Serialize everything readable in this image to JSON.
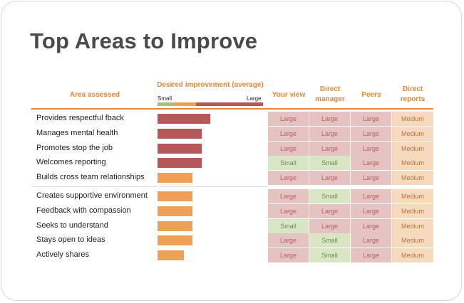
{
  "title": "Top Areas to Improve",
  "headers": {
    "area": "Area assessed",
    "desired": "Desired improvement (average)",
    "your_view": "Your view",
    "direct_manager": "Direct manager",
    "peers": "Peers",
    "direct_reports": "Direct reports"
  },
  "scale": {
    "small": "Small",
    "large": "Large"
  },
  "colors": {
    "accent": "#e0893e",
    "large_bar": "#b5585a",
    "medium_bar": "#eea057",
    "small_bar": "#a4c07a"
  },
  "rows": [
    {
      "label": "Provides respectful fback",
      "level": "large",
      "improvement": 0.5,
      "ratings": [
        "Large",
        "Large",
        "Large",
        "Medium"
      ]
    },
    {
      "label": "Manages mental health",
      "level": "large",
      "improvement": 0.42,
      "ratings": [
        "Large",
        "Large",
        "Large",
        "Medium"
      ]
    },
    {
      "label": "Promotes stop the job",
      "level": "large",
      "improvement": 0.42,
      "ratings": [
        "Large",
        "Large",
        "Large",
        "Medium"
      ]
    },
    {
      "label": "Welcomes reporting",
      "level": "large",
      "improvement": 0.42,
      "ratings": [
        "Small",
        "Small",
        "Large",
        "Medium"
      ]
    },
    {
      "label": "Builds cross team relationships",
      "level": "medium",
      "improvement": 0.33,
      "ratings": [
        "Large",
        "Large",
        "Large",
        "Medium"
      ]
    },
    {
      "label": "Creates supportive environment",
      "level": "medium",
      "improvement": 0.33,
      "ratings": [
        "Large",
        "Small",
        "Large",
        "Medium"
      ]
    },
    {
      "label": "Feedback with compassion",
      "level": "medium",
      "improvement": 0.33,
      "ratings": [
        "Large",
        "Large",
        "Large",
        "Medium"
      ]
    },
    {
      "label": "Seeks to understand",
      "level": "medium",
      "improvement": 0.33,
      "ratings": [
        "Small",
        "Large",
        "Large",
        "Medium"
      ]
    },
    {
      "label": "Stays open to ideas",
      "level": "medium",
      "improvement": 0.33,
      "ratings": [
        "Large",
        "Small",
        "Large",
        "Medium"
      ]
    },
    {
      "label": "Actively shares",
      "level": "medium",
      "improvement": 0.25,
      "ratings": [
        "Large",
        "Small",
        "Large",
        "Medium"
      ]
    }
  ]
}
